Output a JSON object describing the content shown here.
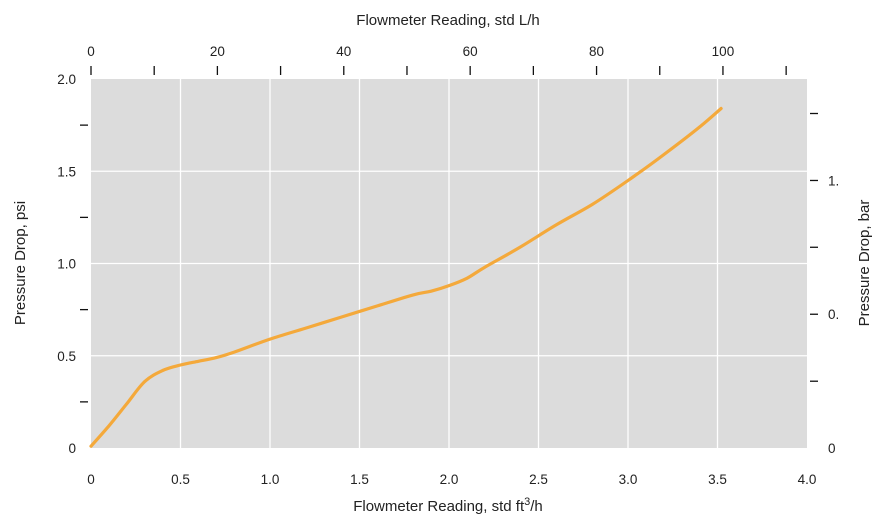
{
  "chart_data": {
    "type": "line",
    "xlabel": "Flowmeter Reading, std ft³/h",
    "ylabel": "Pressure Drop, psi",
    "x2label": "Flowmeter Reading, std L/h",
    "y2label": "Pressure Drop, bar",
    "xlim": [
      0,
      4.0
    ],
    "ylim": [
      0,
      2.0
    ],
    "x2lim": [
      0,
      113.3
    ],
    "xticks": [
      0,
      0.5,
      1.0,
      1.5,
      2.0,
      2.5,
      3.0,
      3.5,
      4.0
    ],
    "xtick_labels": [
      "0",
      "0.5",
      "1.0",
      "1.5",
      "2.0",
      "2.5",
      "3.0",
      "3.5",
      "4.0"
    ],
    "yticks": [
      0,
      0.5,
      1.0,
      1.5,
      2.0
    ],
    "ytick_labels": [
      "0",
      "0.5",
      "1.0",
      "1.5",
      "2.0"
    ],
    "yticks_minor": [
      0.25,
      0.75,
      1.25,
      1.75
    ],
    "x2ticks": [
      0,
      10,
      20,
      30,
      40,
      50,
      60,
      70,
      80,
      90,
      100,
      110
    ],
    "x2tick_labels": [
      "0",
      "",
      "20",
      "",
      "40",
      "",
      "60",
      "",
      "80",
      "",
      "100",
      ""
    ],
    "y2ticks_psi": [
      0,
      0.362,
      0.725,
      1.088,
      1.45,
      1.813
    ],
    "y2tick_labels": [
      "0",
      "",
      "0.",
      "",
      "1.",
      ""
    ],
    "grid": true,
    "line_color": "#f4a93b",
    "background_color": "#dcdcdc",
    "series": [
      {
        "x": [
          0,
          0.1,
          0.2,
          0.3,
          0.4,
          0.5,
          0.6,
          0.7,
          0.8,
          1.0,
          1.2,
          1.4,
          1.6,
          1.8,
          1.9,
          2.0,
          2.1,
          2.2,
          2.4,
          2.6,
          2.8,
          3.0,
          3.2,
          3.4,
          3.52
        ],
        "values": [
          0.01,
          0.12,
          0.24,
          0.36,
          0.42,
          0.45,
          0.47,
          0.49,
          0.52,
          0.59,
          0.65,
          0.71,
          0.77,
          0.83,
          0.85,
          0.88,
          0.92,
          0.98,
          1.09,
          1.21,
          1.32,
          1.45,
          1.59,
          1.74,
          1.84
        ]
      }
    ]
  }
}
